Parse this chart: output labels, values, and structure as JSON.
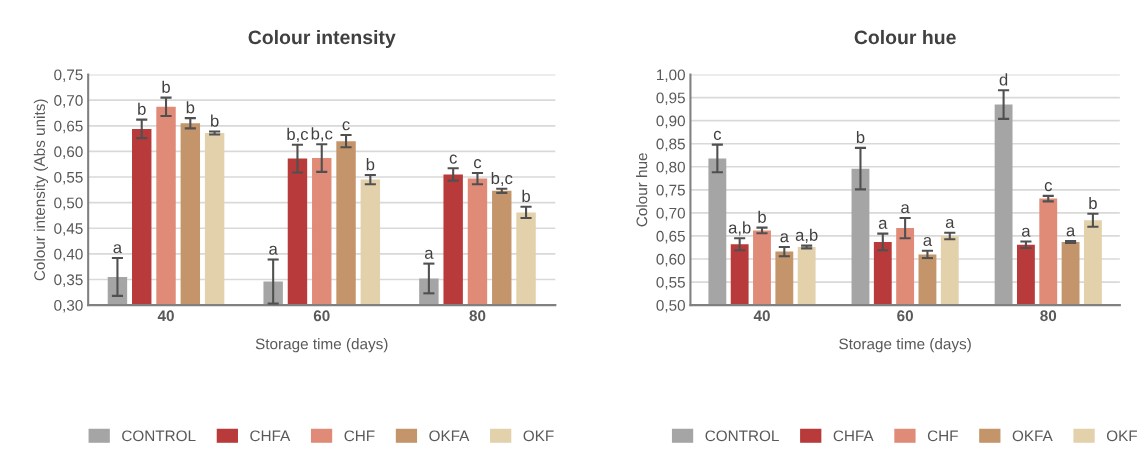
{
  "chart_data": [
    {
      "type": "bar",
      "title": "Colour intensity",
      "xlabel": "Storage time (days)",
      "ylabel": "Colour intensity (Abs units)",
      "categories": [
        "40",
        "60",
        "80"
      ],
      "ylim": [
        0.3,
        0.75
      ],
      "yticks": [
        {
          "value": 0.3,
          "label": "0,30"
        },
        {
          "value": 0.35,
          "label": "0,35"
        },
        {
          "value": 0.4,
          "label": "0,40"
        },
        {
          "value": 0.45,
          "label": "0,45"
        },
        {
          "value": 0.5,
          "label": "0,50"
        },
        {
          "value": 0.55,
          "label": "0,55"
        },
        {
          "value": 0.6,
          "label": "0,60"
        },
        {
          "value": 0.65,
          "label": "0,65"
        },
        {
          "value": 0.7,
          "label": "0,70"
        },
        {
          "value": 0.75,
          "label": "0,75"
        }
      ],
      "grid": "y",
      "legend": "bottom",
      "series": [
        {
          "name": "CONTROL",
          "color": "#a5a5a5",
          "values": [
            0.355,
            0.346,
            0.352
          ],
          "errors": [
            0.037,
            0.043,
            0.029
          ],
          "value_labels": [
            "a",
            "a",
            "a"
          ]
        },
        {
          "name": "CHFA",
          "color": "#b93a3a",
          "values": [
            0.644,
            0.586,
            0.555
          ],
          "errors": [
            0.018,
            0.027,
            0.012
          ],
          "value_labels": [
            "b",
            "b,c",
            "c"
          ]
        },
        {
          "name": "CHF",
          "color": "#e08a78",
          "values": [
            0.687,
            0.587,
            0.547
          ],
          "errors": [
            0.018,
            0.027,
            0.011
          ],
          "value_labels": [
            "b",
            "b,c",
            "c"
          ]
        },
        {
          "name": "OKFA",
          "color": "#c4956a",
          "values": [
            0.655,
            0.62,
            0.523
          ],
          "errors": [
            0.01,
            0.012,
            0.004
          ],
          "value_labels": [
            "b",
            "c",
            "b,c"
          ]
        },
        {
          "name": "OKF",
          "color": "#e2d1aa",
          "values": [
            0.636,
            0.545,
            0.481
          ],
          "errors": [
            0.003,
            0.009,
            0.011
          ],
          "value_labels": [
            "b",
            "b",
            "b"
          ]
        }
      ]
    },
    {
      "type": "bar",
      "title": "Colour hue",
      "xlabel": "Storage time (days)",
      "ylabel": "Colour hue",
      "categories": [
        "40",
        "60",
        "80"
      ],
      "ylim": [
        0.5,
        1.0
      ],
      "yticks": [
        {
          "value": 0.5,
          "label": "0,50"
        },
        {
          "value": 0.55,
          "label": "0,55"
        },
        {
          "value": 0.6,
          "label": "0,60"
        },
        {
          "value": 0.65,
          "label": "0,65"
        },
        {
          "value": 0.7,
          "label": "0,70"
        },
        {
          "value": 0.75,
          "label": "0,75"
        },
        {
          "value": 0.8,
          "label": "0,80"
        },
        {
          "value": 0.85,
          "label": "0,85"
        },
        {
          "value": 0.9,
          "label": "0,90"
        },
        {
          "value": 0.95,
          "label": "0,95"
        },
        {
          "value": 1.0,
          "label": "1,00"
        }
      ],
      "grid": "y",
      "legend": "bottom",
      "series": [
        {
          "name": "CONTROL",
          "color": "#a5a5a5",
          "values": [
            0.818,
            0.796,
            0.935
          ],
          "errors": [
            0.03,
            0.045,
            0.031
          ],
          "value_labels": [
            "c",
            "b",
            "d"
          ]
        },
        {
          "name": "CHFA",
          "color": "#b93a3a",
          "values": [
            0.632,
            0.637,
            0.631
          ],
          "errors": [
            0.013,
            0.018,
            0.007
          ],
          "value_labels": [
            "a,b",
            "a",
            "a"
          ]
        },
        {
          "name": "CHF",
          "color": "#e08a78",
          "values": [
            0.662,
            0.667,
            0.731
          ],
          "errors": [
            0.006,
            0.022,
            0.006
          ],
          "value_labels": [
            "b",
            "a",
            "c"
          ]
        },
        {
          "name": "OKFA",
          "color": "#c4956a",
          "values": [
            0.616,
            0.61,
            0.637
          ],
          "errors": [
            0.01,
            0.008,
            0.002
          ],
          "value_labels": [
            "a",
            "a",
            "a"
          ]
        },
        {
          "name": "OKF",
          "color": "#e2d1aa",
          "values": [
            0.626,
            0.65,
            0.684
          ],
          "errors": [
            0.003,
            0.007,
            0.014
          ],
          "value_labels": [
            "a,b",
            "a",
            "b"
          ]
        }
      ]
    }
  ]
}
